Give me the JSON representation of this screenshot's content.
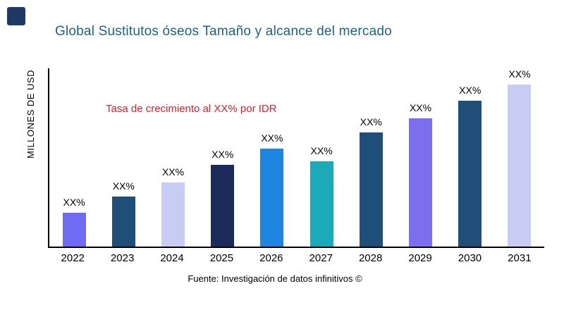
{
  "logo": {
    "color": "#1f3864"
  },
  "header": {
    "title": "Global Sustitutos óseos Tamaño y alcance del mercado",
    "color": "#1c6383"
  },
  "annotation": {
    "text": "Tasa de crecimiento al XX% por IDR",
    "color": "#e61a2b"
  },
  "footer": {
    "text": "Fuente: Investigación de datos infinitivos ©"
  },
  "chart_data": {
    "type": "bar",
    "title": "Global Sustitutos óseos Tamaño y alcance del mercado",
    "xlabel": "",
    "ylabel": "MILLONES DE USD",
    "categories": [
      "2022",
      "2023",
      "2024",
      "2025",
      "2026",
      "2027",
      "2028",
      "2029",
      "2030",
      "2031"
    ],
    "values": [
      19,
      28,
      36,
      46,
      55,
      48,
      64,
      72,
      82,
      91
    ],
    "values_note": "relative bar heights estimated from pixels; numeric axis values not shown in chart",
    "bar_labels": [
      "XX%",
      "XX%",
      "XX%",
      "XX%",
      "XX%",
      "XX%",
      "XX%",
      "XX%",
      "XX%",
      "XX%"
    ],
    "bar_colors": [
      "#6f6bf2",
      "#1f4e79",
      "#c8ccf2",
      "#1b2a5a",
      "#1e86e0",
      "#1ca9b8",
      "#1f4e79",
      "#7d6ef0",
      "#1f4e79",
      "#c8ccf2"
    ],
    "ylim": [
      0,
      100
    ],
    "grid": false,
    "legend": false,
    "annotation": "Tasa de crecimiento al XX% por IDR",
    "source": "Fuente: Investigación de datos infinitivos ©"
  }
}
